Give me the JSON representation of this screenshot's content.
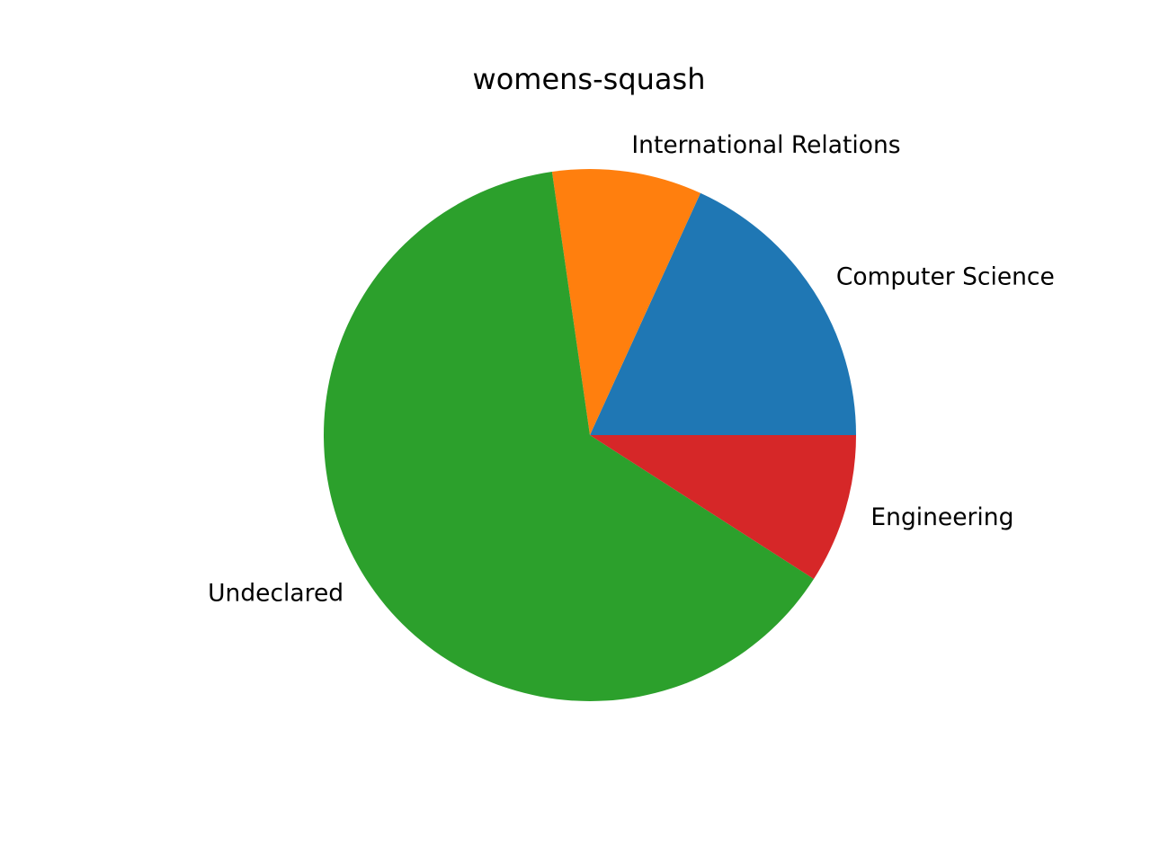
{
  "chart_data": {
    "type": "pie",
    "title": "womens-squash",
    "start_angle_deg": 0,
    "direction": "counterclockwise",
    "slices": [
      {
        "label": "Computer Science",
        "value": 2,
        "color": "#1f77b4"
      },
      {
        "label": "International Relations",
        "value": 1,
        "color": "#ff7f0e"
      },
      {
        "label": "Undeclared",
        "value": 7,
        "color": "#2ca02c"
      },
      {
        "label": "Engineering",
        "value": 1,
        "color": "#d62728"
      }
    ]
  }
}
